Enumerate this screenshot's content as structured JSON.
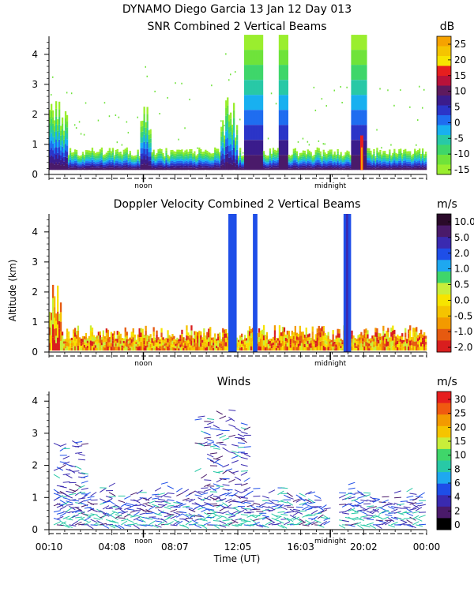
{
  "header": {
    "title_line": "DYNAMO Diego Garcia   13 Jan 12 Day 013"
  },
  "chart_data": [
    {
      "type": "heatmap",
      "title": "SNR Combined 2 Vertical Beams",
      "ylim": [
        0,
        4.6
      ],
      "y_ticks": [
        "0",
        "1",
        "2",
        "3",
        "4"
      ],
      "x_markers": [
        "noon",
        "midnight"
      ],
      "colorbar": {
        "unit": "dB",
        "labels": [
          "25",
          "20",
          "15",
          "10",
          "5",
          "0",
          "-5",
          "-10",
          "-15"
        ],
        "colors": [
          "#f6a300",
          "#f5c400",
          "#f7e400",
          "#e61e1e",
          "#b8123a",
          "#5e1a5e",
          "#3b1c8c",
          "#2b35c8",
          "#1f6df0",
          "#18b0f0",
          "#28c9a6",
          "#3fd66a",
          "#6fe33a",
          "#9aee2e"
        ]
      }
    },
    {
      "type": "heatmap",
      "title": "Doppler Velocity Combined 2 Vertical Beams",
      "ylabel": "Altitude (km)",
      "ylim": [
        0,
        4.6
      ],
      "y_ticks": [
        "0",
        "1",
        "2",
        "3",
        "4"
      ],
      "x_markers": [
        "noon",
        "midnight"
      ],
      "colorbar": {
        "unit": "m/s",
        "labels": [
          "10.0",
          "5.0",
          "2.0",
          "1.0",
          "0.5",
          "0.0",
          "-0.5",
          "-1.0",
          "-2.0"
        ],
        "colors": [
          "#2a0a2a",
          "#4a1a6a",
          "#3a2ab0",
          "#1e4ee8",
          "#1ea8f0",
          "#3fd66a",
          "#c9ee3a",
          "#f7e400",
          "#f5c400",
          "#f39a00",
          "#e65a10",
          "#d91e1e"
        ]
      }
    },
    {
      "type": "scatter",
      "title": "Winds",
      "xlabel": "Time (UT)",
      "ylim": [
        0,
        4.3
      ],
      "y_ticks": [
        "0",
        "1",
        "2",
        "3",
        "4"
      ],
      "x_tick_labels": [
        "00:10",
        "04:08",
        "08:07",
        "12:05",
        "16:03",
        "20:02",
        "00:00"
      ],
      "x_markers": [
        "noon",
        "midnight"
      ],
      "colorbar": {
        "unit": "m/s",
        "labels": [
          "30",
          "25",
          "20",
          "15",
          "10",
          "8",
          "6",
          "4",
          "2",
          "0"
        ],
        "colors": [
          "#e61e1e",
          "#f05a10",
          "#f39a00",
          "#f5c400",
          "#c9ee3a",
          "#3fd66a",
          "#28c9a6",
          "#1ea8f0",
          "#1e4ee8",
          "#3a2ab0",
          "#4a1a6a",
          "#000000"
        ]
      }
    }
  ]
}
